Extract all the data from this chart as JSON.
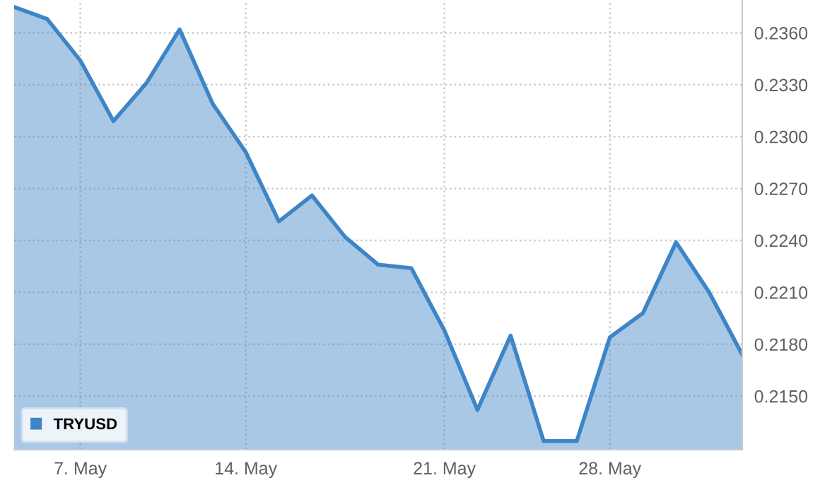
{
  "chart_data": {
    "type": "area",
    "categories": [
      null,
      null,
      "7. May",
      null,
      null,
      null,
      null,
      "14. May",
      null,
      null,
      null,
      null,
      null,
      "21. May",
      null,
      null,
      null,
      null,
      "28. May",
      null,
      null,
      null,
      null
    ],
    "series": [
      {
        "name": "TRYUSD",
        "color": "#3d85c6",
        "values": [
          0.2375,
          0.2368,
          0.2344,
          0.2309,
          0.2331,
          0.2362,
          0.2319,
          0.2291,
          0.2251,
          0.2266,
          0.2242,
          0.2226,
          0.2224,
          0.2188,
          0.2142,
          0.2185,
          0.2124,
          0.2124,
          0.2184,
          0.2198,
          0.2239,
          0.221,
          0.2174
        ]
      }
    ],
    "ylim": [
      0.2119,
      0.2379
    ],
    "yticks": [
      {
        "value": 0.215,
        "label": "0.2150"
      },
      {
        "value": 0.218,
        "label": "0.2180"
      },
      {
        "value": 0.221,
        "label": "0.2210"
      },
      {
        "value": 0.224,
        "label": "0.2240"
      },
      {
        "value": 0.227,
        "label": "0.2270"
      },
      {
        "value": 0.23,
        "label": "0.2300"
      },
      {
        "value": 0.233,
        "label": "0.2330"
      },
      {
        "value": 0.236,
        "label": "0.2360"
      }
    ],
    "grid": true,
    "legend": "bottom left"
  }
}
